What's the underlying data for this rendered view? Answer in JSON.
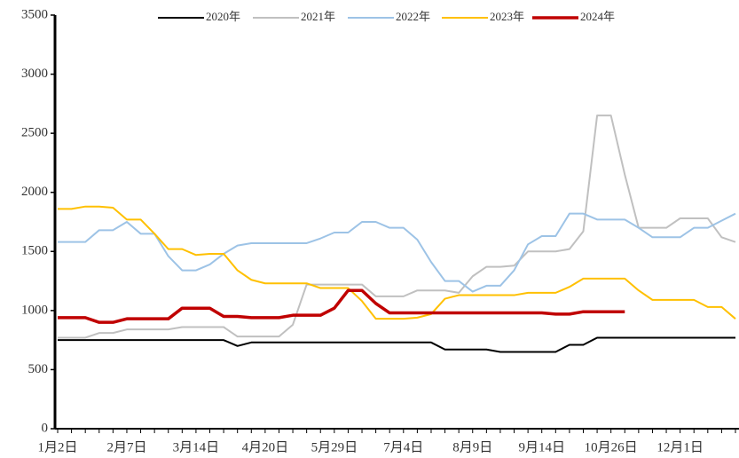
{
  "chart_data": {
    "type": "line",
    "categories": [
      "1月2日",
      null,
      null,
      null,
      null,
      "2月7日",
      null,
      null,
      null,
      null,
      "3月14日",
      null,
      null,
      null,
      null,
      "4月20日",
      null,
      null,
      null,
      null,
      "5月29日",
      null,
      null,
      null,
      null,
      "7月4日",
      null,
      null,
      null,
      null,
      "8月9日",
      null,
      null,
      null,
      null,
      "9月14日",
      null,
      null,
      null,
      null,
      "10月26日",
      null,
      null,
      null,
      null,
      "12月1日",
      null,
      null,
      null,
      null
    ],
    "ylim": [
      0,
      3500
    ],
    "yticks": [
      0,
      500,
      1000,
      1500,
      2000,
      2500,
      3000,
      3500
    ],
    "series": [
      {
        "name": "2020年",
        "color": "#000000",
        "width": 2,
        "values": [
          750,
          750,
          750,
          750,
          750,
          750,
          750,
          750,
          750,
          750,
          750,
          750,
          750,
          700,
          730,
          730,
          730,
          730,
          730,
          730,
          730,
          730,
          730,
          730,
          730,
          730,
          730,
          730,
          670,
          670,
          670,
          670,
          650,
          650,
          650,
          650,
          650,
          710,
          710,
          770,
          770,
          770,
          770,
          770,
          770,
          770,
          770,
          770,
          770,
          770
        ]
      },
      {
        "name": "2021年",
        "color": "#c0c0c0",
        "width": 2,
        "values": [
          770,
          770,
          770,
          810,
          810,
          840,
          840,
          840,
          840,
          860,
          860,
          860,
          860,
          780,
          780,
          780,
          780,
          880,
          1220,
          1220,
          1220,
          1220,
          1220,
          1120,
          1120,
          1120,
          1170,
          1170,
          1170,
          1150,
          1290,
          1370,
          1370,
          1380,
          1500,
          1500,
          1500,
          1520,
          1670,
          2650,
          2650,
          2150,
          1700,
          1700,
          1700,
          1780,
          1780,
          1780,
          1620,
          1580
        ]
      },
      {
        "name": "2022年",
        "color": "#9dc3e6",
        "width": 2,
        "values": [
          1580,
          1580,
          1580,
          1680,
          1680,
          1750,
          1650,
          1650,
          1460,
          1340,
          1340,
          1390,
          1480,
          1550,
          1570,
          1570,
          1570,
          1570,
          1570,
          1610,
          1660,
          1660,
          1750,
          1750,
          1700,
          1700,
          1600,
          1410,
          1250,
          1250,
          1160,
          1210,
          1210,
          1340,
          1560,
          1630,
          1630,
          1820,
          1820,
          1770,
          1770,
          1770,
          1700,
          1620,
          1620,
          1620,
          1700,
          1700,
          1760,
          1820
        ]
      },
      {
        "name": "2023年",
        "color": "#ffc000",
        "width": 2,
        "values": [
          1860,
          1860,
          1880,
          1880,
          1870,
          1770,
          1770,
          1650,
          1520,
          1520,
          1470,
          1480,
          1480,
          1340,
          1260,
          1230,
          1230,
          1230,
          1230,
          1190,
          1190,
          1190,
          1080,
          930,
          930,
          930,
          940,
          970,
          1100,
          1130,
          1130,
          1130,
          1130,
          1130,
          1150,
          1150,
          1150,
          1200,
          1270,
          1270,
          1270,
          1270,
          1170,
          1090,
          1090,
          1090,
          1090,
          1030,
          1030,
          930
        ]
      },
      {
        "name": "2024年",
        "color": "#c00000",
        "width": 3.5,
        "values": [
          940,
          940,
          940,
          900,
          900,
          930,
          930,
          930,
          930,
          1020,
          1020,
          1020,
          950,
          950,
          940,
          940,
          940,
          960,
          960,
          960,
          1020,
          1170,
          1170,
          1060,
          980,
          980,
          980,
          980,
          980,
          980,
          980,
          980,
          980,
          980,
          980,
          980,
          970,
          970,
          990,
          990,
          990,
          990,
          null,
          null,
          null,
          null,
          null,
          null,
          null,
          null
        ]
      }
    ]
  }
}
